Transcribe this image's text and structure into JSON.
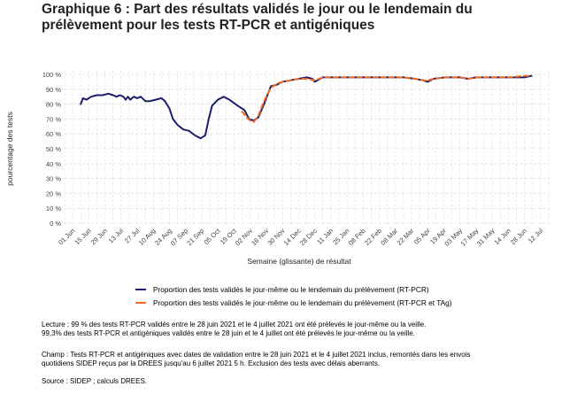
{
  "title": "Graphique 6 : Part des résultats validés le jour ou le lendemain du prélèvement pour les tests RT-PCR et antigéniques",
  "colors": {
    "rtpcr": "#1a1f6b",
    "rtpcr_tag": "#f26b21",
    "grid": "#d4d4d4"
  },
  "chart_data": {
    "type": "line",
    "title": "Graphique 6 : Part des résultats validés le jour ou le lendemain du prélèvement pour les tests RT-PCR et antigéniques",
    "xlabel": "Semaine (glissante) de résultat",
    "ylabel": "pourcentage des tests",
    "ylim": [
      0,
      100
    ],
    "yticks": [
      0,
      10,
      20,
      30,
      40,
      50,
      60,
      70,
      80,
      90,
      100
    ],
    "ytick_labels": [
      "0 %",
      "10 %",
      "20 %",
      "30 %",
      "40 %",
      "50 %",
      "60 %",
      "70 %",
      "80 %",
      "90 %",
      "100 %"
    ],
    "xlim": [
      "2020-05-25",
      "2021-07-19"
    ],
    "xticks": [
      "2020-06-01",
      "2020-06-15",
      "2020-06-29",
      "2020-07-13",
      "2020-07-27",
      "2020-08-10",
      "2020-08-24",
      "2020-09-07",
      "2020-09-21",
      "2020-10-05",
      "2020-10-19",
      "2020-11-02",
      "2020-11-16",
      "2020-11-30",
      "2020-12-14",
      "2020-12-28",
      "2021-01-11",
      "2021-01-25",
      "2021-02-08",
      "2021-02-22",
      "2021-03-08",
      "2021-03-22",
      "2021-04-05",
      "2021-04-19",
      "2021-05-03",
      "2021-05-17",
      "2021-05-31",
      "2021-06-14",
      "2021-06-28",
      "2021-07-12"
    ],
    "xtick_labels": [
      "01 Jun",
      "15 Jun",
      "29 Jun",
      "13 Jul",
      "27 Jul",
      "10 Aug",
      "24 Aug",
      "07 Sep",
      "21 Sep",
      "05 Oct",
      "19 Oct",
      "02 Nov",
      "16 Nov",
      "30 Nov",
      "14 Dec",
      "28 Dec",
      "11 Jan",
      "25 Jan",
      "08 Feb",
      "22 Feb",
      "08 Mar",
      "22 Mar",
      "05 Apr",
      "19 Apr",
      "03 May",
      "17 May",
      "31 May",
      "14 Jun",
      "28 Jun",
      "12 Jul"
    ],
    "grid": true,
    "legend_position": "bottom",
    "series": [
      {
        "name": "Proportion des tests validés le jour-même ou le lendemain du prélèvement (RT-PCR)",
        "color": "#1a1f6b",
        "style": "solid",
        "points": [
          [
            "2020-06-08",
            80
          ],
          [
            "2020-06-10",
            84
          ],
          [
            "2020-06-13",
            83
          ],
          [
            "2020-06-17",
            85
          ],
          [
            "2020-06-22",
            86
          ],
          [
            "2020-06-27",
            86
          ],
          [
            "2020-07-02",
            87
          ],
          [
            "2020-07-06",
            86
          ],
          [
            "2020-07-09",
            85
          ],
          [
            "2020-07-12",
            86
          ],
          [
            "2020-07-15",
            85
          ],
          [
            "2020-07-17",
            83
          ],
          [
            "2020-07-19",
            85
          ],
          [
            "2020-07-21",
            83
          ],
          [
            "2020-07-24",
            85
          ],
          [
            "2020-07-27",
            84
          ],
          [
            "2020-07-30",
            85
          ],
          [
            "2020-08-03",
            82
          ],
          [
            "2020-08-07",
            82
          ],
          [
            "2020-08-12",
            83
          ],
          [
            "2020-08-17",
            84
          ],
          [
            "2020-08-20",
            82
          ],
          [
            "2020-08-24",
            77
          ],
          [
            "2020-08-27",
            70
          ],
          [
            "2020-08-31",
            66
          ],
          [
            "2020-09-05",
            63
          ],
          [
            "2020-09-10",
            62
          ],
          [
            "2020-09-15",
            59
          ],
          [
            "2020-09-20",
            57
          ],
          [
            "2020-09-24",
            59
          ],
          [
            "2020-09-27",
            70
          ],
          [
            "2020-09-30",
            79
          ],
          [
            "2020-10-05",
            83
          ],
          [
            "2020-10-10",
            85
          ],
          [
            "2020-10-15",
            83
          ],
          [
            "2020-10-22",
            79
          ],
          [
            "2020-10-28",
            76
          ],
          [
            "2020-11-01",
            70
          ],
          [
            "2020-11-05",
            69
          ],
          [
            "2020-11-09",
            71
          ],
          [
            "2020-11-14",
            80
          ],
          [
            "2020-11-20",
            92
          ],
          [
            "2020-11-25",
            93
          ],
          [
            "2020-11-30",
            95
          ],
          [
            "2020-12-07",
            96
          ],
          [
            "2020-12-14",
            97
          ],
          [
            "2020-12-21",
            98
          ],
          [
            "2020-12-26",
            97
          ],
          [
            "2020-12-28",
            95
          ],
          [
            "2021-01-04",
            98
          ],
          [
            "2021-01-18",
            98
          ],
          [
            "2021-02-01",
            98
          ],
          [
            "2021-02-15",
            98
          ],
          [
            "2021-03-01",
            98
          ],
          [
            "2021-03-15",
            98
          ],
          [
            "2021-03-25",
            97
          ],
          [
            "2021-04-01",
            96
          ],
          [
            "2021-04-05",
            95
          ],
          [
            "2021-04-10",
            97
          ],
          [
            "2021-04-20",
            98
          ],
          [
            "2021-05-03",
            98
          ],
          [
            "2021-05-10",
            97
          ],
          [
            "2021-05-17",
            98
          ],
          [
            "2021-05-31",
            98
          ],
          [
            "2021-06-14",
            98
          ],
          [
            "2021-06-28",
            98
          ],
          [
            "2021-07-04",
            99
          ]
        ]
      },
      {
        "name": "Proportion des tests validés le jour-même ou le lendemain du prélèvement (RT-PCR et TAg)",
        "color": "#f26b21",
        "style": "dashed",
        "points": [
          [
            "2020-10-26",
            75
          ],
          [
            "2020-10-30",
            71
          ],
          [
            "2020-11-02",
            69
          ],
          [
            "2020-11-05",
            68
          ],
          [
            "2020-11-09",
            72
          ],
          [
            "2020-11-14",
            82
          ],
          [
            "2020-11-20",
            91
          ],
          [
            "2020-11-26",
            94
          ],
          [
            "2020-11-30",
            95
          ],
          [
            "2020-12-07",
            96
          ],
          [
            "2020-12-14",
            97
          ],
          [
            "2020-12-21",
            97
          ],
          [
            "2020-12-28",
            96
          ],
          [
            "2021-01-04",
            98
          ],
          [
            "2021-01-18",
            98
          ],
          [
            "2021-02-01",
            98
          ],
          [
            "2021-02-15",
            98
          ],
          [
            "2021-03-01",
            98
          ],
          [
            "2021-03-15",
            98
          ],
          [
            "2021-03-25",
            97
          ],
          [
            "2021-04-01",
            96
          ],
          [
            "2021-04-05",
            96
          ],
          [
            "2021-04-10",
            97
          ],
          [
            "2021-04-20",
            98
          ],
          [
            "2021-05-03",
            98
          ],
          [
            "2021-05-10",
            97
          ],
          [
            "2021-05-17",
            98
          ],
          [
            "2021-05-31",
            98
          ],
          [
            "2021-06-14",
            98
          ],
          [
            "2021-06-28",
            99
          ],
          [
            "2021-07-04",
            99
          ]
        ]
      }
    ]
  },
  "legend": {
    "rtpcr_label": "Proportion des tests validés le jour-même ou le lendemain du prélèvement (RT-PCR)",
    "rtpcr_tag_label": "Proportion des tests validés le jour-même ou le lendemain du prélèvement (RT-PCR et TAg)"
  },
  "notes": {
    "lecture_1": "Lecture : 99 % des tests RT-PCR validés entre le 28 juin 2021 et le 4 juillet 2021 ont été prélevés le jour-même ou la veille.",
    "lecture_2": "99,3% des tests RT-PCR et antigéniques validés entre le 28 juin et le 4 juillet ont été prélevés le jour-même ou la veille.",
    "champ_1": "Champ : Tests RT-PCR et antigéniques avec dates de validation entre le 28 juin 2021 et le 4 juillet 2021 inclus, remontés dans les envois",
    "champ_2": "quotidiens SIDEP reçus par la DREES jusqu'au 6 juillet 2021 5 h. Exclusion des tests avec délais aberrants.",
    "source": "Source : SIDEP ; calculs DREES."
  }
}
